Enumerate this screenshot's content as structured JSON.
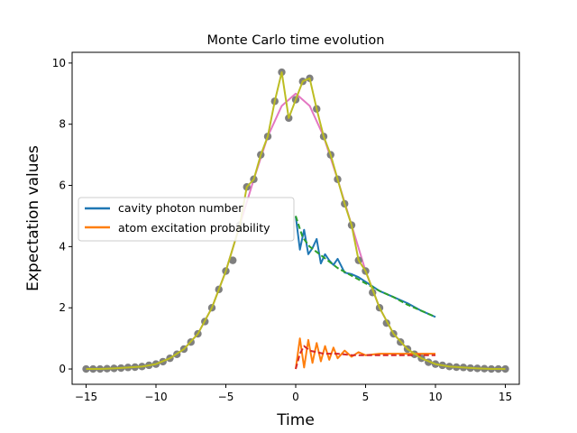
{
  "chart_data": {
    "type": "line",
    "title": "Monte Carlo time evolution",
    "xlabel": "Time",
    "ylabel": "Expectation values",
    "xlim": [
      -16,
      16
    ],
    "ylim": [
      -0.5,
      10.35
    ],
    "xticks": [
      -15,
      -10,
      -5,
      0,
      5,
      10,
      15
    ],
    "yticks": [
      0,
      2,
      4,
      6,
      8,
      10
    ],
    "grid": false,
    "legend_position": "center-left",
    "series": [
      {
        "name": "cavity photon number",
        "color": "#1f77b4",
        "x": [
          0,
          0.3,
          0.6,
          0.9,
          1.2,
          1.5,
          1.8,
          2.1,
          2.4,
          2.7,
          3.0,
          3.5,
          4.0,
          4.5,
          5.0,
          6.0,
          7.0,
          8.0,
          9.0,
          10.0
        ],
        "values": [
          5.0,
          3.9,
          4.55,
          3.75,
          3.95,
          4.25,
          3.45,
          3.75,
          3.55,
          3.4,
          3.6,
          3.15,
          3.1,
          3.0,
          2.85,
          2.55,
          2.35,
          2.15,
          1.9,
          1.7
        ]
      },
      {
        "name": "atom excitation probability",
        "color": "#ff7f0e",
        "x": [
          0,
          0.3,
          0.6,
          0.9,
          1.2,
          1.5,
          1.8,
          2.1,
          2.4,
          2.7,
          3.0,
          3.5,
          4.0,
          4.5,
          5.0,
          6.0,
          7.0,
          8.0,
          9.0,
          10.0
        ],
        "values": [
          0.0,
          1.0,
          0.05,
          0.95,
          0.2,
          0.85,
          0.25,
          0.75,
          0.3,
          0.7,
          0.35,
          0.6,
          0.4,
          0.55,
          0.45,
          0.5,
          0.5,
          0.5,
          0.5,
          0.5
        ]
      },
      {
        "color": "#2ca02c",
        "style": "dashed",
        "x": [
          0,
          0.5,
          1.0,
          2.0,
          3.0,
          4.0,
          5.0,
          6.0,
          7.0,
          8.0,
          9.0,
          10.0
        ],
        "values": [
          5.0,
          4.3,
          4.0,
          3.65,
          3.3,
          3.05,
          2.8,
          2.55,
          2.35,
          2.1,
          1.9,
          1.7
        ]
      },
      {
        "color": "#d62728",
        "style": "dashed",
        "x": [
          0,
          0.3,
          0.6,
          1.0,
          1.5,
          2.0,
          2.5,
          3.0,
          4.0,
          5.0,
          6.0,
          7.0,
          8.0,
          10.0
        ],
        "values": [
          0.0,
          0.5,
          0.75,
          0.6,
          0.55,
          0.5,
          0.5,
          0.5,
          0.45,
          0.45,
          0.45,
          0.45,
          0.45,
          0.45
        ]
      },
      {
        "color": "#e377c2",
        "x": [
          -15,
          -13,
          -11,
          -10,
          -9,
          -8,
          -7,
          -6,
          -5,
          -4,
          -3,
          -2,
          -1,
          0,
          1,
          2,
          3,
          4,
          5,
          6,
          7,
          8,
          9,
          10,
          11,
          13,
          15
        ],
        "values": [
          0.0,
          0.02,
          0.08,
          0.16,
          0.35,
          0.65,
          1.15,
          2.0,
          3.2,
          4.7,
          6.2,
          7.6,
          8.6,
          9.0,
          8.6,
          7.6,
          6.2,
          4.7,
          3.2,
          2.0,
          1.15,
          0.65,
          0.35,
          0.16,
          0.08,
          0.02,
          0.0
        ]
      },
      {
        "color": "#7f7f7f",
        "style": "markers",
        "x": [
          -15,
          -14.5,
          -14,
          -13.5,
          -13,
          -12.5,
          -12,
          -11.5,
          -11,
          -10.5,
          -10,
          -9.5,
          -9,
          -8.5,
          -8,
          -7.5,
          -7,
          -6.5,
          -6,
          -5.5,
          -5,
          -4.5,
          -4,
          -3.5,
          -3,
          -2.5,
          -2,
          -1.5,
          -1,
          -0.5,
          0,
          0.5,
          1,
          1.5,
          2,
          2.5,
          3,
          3.5,
          4,
          4.5,
          5,
          5.5,
          6,
          6.5,
          7,
          7.5,
          8,
          8.5,
          9,
          9.5,
          10,
          10.5,
          11,
          11.5,
          12,
          12.5,
          13,
          13.5,
          14,
          14.5,
          15
        ],
        "values": [
          0.0,
          0.0,
          0.0,
          0.01,
          0.02,
          0.03,
          0.05,
          0.06,
          0.08,
          0.12,
          0.16,
          0.24,
          0.35,
          0.48,
          0.65,
          0.88,
          1.15,
          1.55,
          2.0,
          2.6,
          3.2,
          3.55,
          4.7,
          5.95,
          6.2,
          7.0,
          7.6,
          8.75,
          9.7,
          8.2,
          8.8,
          9.4,
          9.5,
          8.5,
          7.6,
          7.0,
          6.2,
          5.4,
          4.7,
          3.55,
          3.2,
          2.5,
          2.0,
          1.5,
          1.15,
          0.88,
          0.65,
          0.48,
          0.35,
          0.22,
          0.16,
          0.12,
          0.08,
          0.06,
          0.05,
          0.03,
          0.02,
          0.01,
          0.0,
          0.0,
          0.0
        ]
      },
      {
        "color": "#bcbd22",
        "x": [
          -15,
          -14,
          -13,
          -12,
          -11,
          -10,
          -9,
          -8,
          -7,
          -6,
          -5,
          -4,
          -3.5,
          -3,
          -2.5,
          -2,
          -1.5,
          -1,
          -0.5,
          0,
          0.5,
          1,
          1.5,
          2,
          2.5,
          3,
          3.5,
          4,
          4.5,
          5,
          6,
          7,
          8,
          9,
          10,
          11,
          12,
          13,
          14,
          15
        ],
        "values": [
          0.0,
          0.0,
          0.02,
          0.05,
          0.08,
          0.16,
          0.35,
          0.65,
          1.15,
          2.0,
          3.2,
          4.7,
          5.95,
          6.2,
          7.0,
          7.6,
          8.75,
          9.7,
          8.2,
          8.8,
          9.4,
          9.5,
          8.5,
          7.6,
          7.0,
          6.2,
          5.4,
          4.7,
          3.55,
          3.2,
          2.0,
          1.15,
          0.65,
          0.35,
          0.16,
          0.08,
          0.05,
          0.02,
          0.0,
          0.0
        ]
      }
    ]
  }
}
